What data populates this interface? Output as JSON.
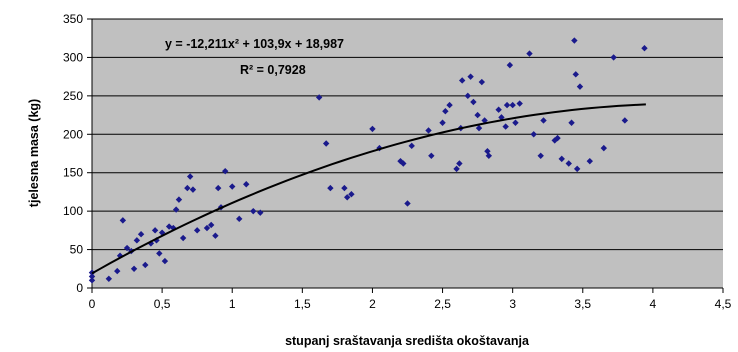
{
  "chart_data": {
    "type": "scatter",
    "xlabel": "stupanj sraštavanja središta okoštavanja",
    "ylabel": "tjelesna masa (kg)",
    "xlim": [
      0,
      4.5
    ],
    "ylim": [
      0,
      350
    ],
    "x_ticks": [
      "0",
      "0,5",
      "1",
      "1,5",
      "2",
      "2,5",
      "3",
      "3,5",
      "4",
      "4,5"
    ],
    "y_ticks": [
      "0",
      "50",
      "100",
      "150",
      "200",
      "250",
      "300",
      "350"
    ],
    "grid": "horizontal",
    "plot_background": "#c0c0c0",
    "marker_color": "#1a1a8c",
    "trendline_color": "#000000",
    "equation": "y = -12,211x² + 103,9x + 18,987",
    "r_squared": "R² = 0,7928",
    "trendline": {
      "type": "polynomial",
      "a": -12.211,
      "b": 103.9,
      "c": 18.987,
      "x_range": [
        0,
        3.95
      ]
    },
    "points": [
      [
        0.0,
        20
      ],
      [
        0.0,
        15
      ],
      [
        0.0,
        10
      ],
      [
        0.12,
        12
      ],
      [
        0.18,
        22
      ],
      [
        0.2,
        42
      ],
      [
        0.22,
        88
      ],
      [
        0.25,
        52
      ],
      [
        0.28,
        48
      ],
      [
        0.3,
        25
      ],
      [
        0.32,
        62
      ],
      [
        0.35,
        70
      ],
      [
        0.38,
        30
      ],
      [
        0.42,
        58
      ],
      [
        0.45,
        75
      ],
      [
        0.46,
        62
      ],
      [
        0.48,
        45
      ],
      [
        0.5,
        72
      ],
      [
        0.52,
        35
      ],
      [
        0.55,
        80
      ],
      [
        0.58,
        78
      ],
      [
        0.6,
        102
      ],
      [
        0.62,
        115
      ],
      [
        0.65,
        65
      ],
      [
        0.68,
        130
      ],
      [
        0.7,
        145
      ],
      [
        0.72,
        128
      ],
      [
        0.75,
        75
      ],
      [
        0.82,
        78
      ],
      [
        0.85,
        82
      ],
      [
        0.88,
        68
      ],
      [
        0.9,
        130
      ],
      [
        0.92,
        105
      ],
      [
        0.95,
        152
      ],
      [
        1.0,
        132
      ],
      [
        1.05,
        90
      ],
      [
        1.1,
        135
      ],
      [
        1.15,
        100
      ],
      [
        1.2,
        98
      ],
      [
        1.62,
        248
      ],
      [
        1.67,
        188
      ],
      [
        1.7,
        130
      ],
      [
        1.8,
        130
      ],
      [
        1.82,
        118
      ],
      [
        1.85,
        122
      ],
      [
        2.0,
        207
      ],
      [
        2.05,
        182
      ],
      [
        2.2,
        165
      ],
      [
        2.22,
        162
      ],
      [
        2.25,
        110
      ],
      [
        2.28,
        185
      ],
      [
        2.4,
        205
      ],
      [
        2.42,
        172
      ],
      [
        2.5,
        215
      ],
      [
        2.52,
        230
      ],
      [
        2.55,
        238
      ],
      [
        2.6,
        155
      ],
      [
        2.62,
        162
      ],
      [
        2.63,
        208
      ],
      [
        2.64,
        270
      ],
      [
        2.68,
        250
      ],
      [
        2.7,
        275
      ],
      [
        2.72,
        242
      ],
      [
        2.75,
        225
      ],
      [
        2.76,
        208
      ],
      [
        2.78,
        268
      ],
      [
        2.8,
        218
      ],
      [
        2.82,
        178
      ],
      [
        2.83,
        172
      ],
      [
        2.9,
        232
      ],
      [
        2.92,
        222
      ],
      [
        2.95,
        210
      ],
      [
        2.96,
        238
      ],
      [
        2.98,
        290
      ],
      [
        3.0,
        238
      ],
      [
        3.02,
        215
      ],
      [
        3.05,
        240
      ],
      [
        3.12,
        305
      ],
      [
        3.15,
        200
      ],
      [
        3.2,
        172
      ],
      [
        3.22,
        218
      ],
      [
        3.3,
        192
      ],
      [
        3.32,
        195
      ],
      [
        3.35,
        168
      ],
      [
        3.4,
        162
      ],
      [
        3.42,
        215
      ],
      [
        3.44,
        322
      ],
      [
        3.45,
        278
      ],
      [
        3.46,
        155
      ],
      [
        3.48,
        262
      ],
      [
        3.55,
        165
      ],
      [
        3.65,
        182
      ],
      [
        3.72,
        300
      ],
      [
        3.8,
        218
      ],
      [
        3.94,
        312
      ]
    ]
  }
}
